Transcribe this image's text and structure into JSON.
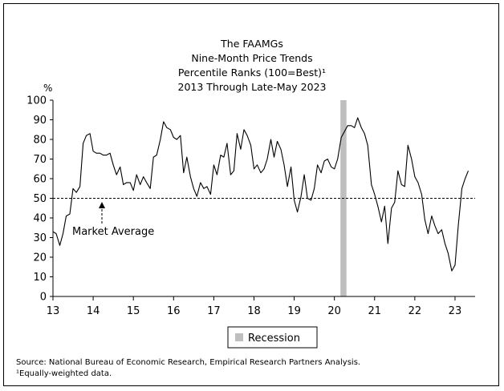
{
  "chart_data": {
    "type": "line",
    "title_lines": [
      "The FAAMGs",
      "Nine-Month Price Trends",
      "Percentile Ranks (100=Best)¹",
      "2013 Through Late-May 2023"
    ],
    "ylabel": "%",
    "ylim": [
      0,
      100
    ],
    "yticks": [
      0,
      10,
      20,
      30,
      40,
      50,
      60,
      70,
      80,
      90,
      100
    ],
    "xlim": [
      2013,
      2023.5
    ],
    "xticks": [
      {
        "value": 2013,
        "label": "13"
      },
      {
        "value": 2014,
        "label": "14"
      },
      {
        "value": 2015,
        "label": "15"
      },
      {
        "value": 2016,
        "label": "16"
      },
      {
        "value": 2017,
        "label": "17"
      },
      {
        "value": 2018,
        "label": "18"
      },
      {
        "value": 2019,
        "label": "19"
      },
      {
        "value": 2020,
        "label": "20"
      },
      {
        "value": 2021,
        "label": "21"
      },
      {
        "value": 2022,
        "label": "22"
      },
      {
        "value": 2023,
        "label": "23"
      }
    ],
    "reference_line": {
      "value": 50,
      "label": "Market Average",
      "style": "dashed"
    },
    "recession": {
      "start": 2020.15,
      "end": 2020.3,
      "label": "Recession",
      "color": "#bfbfbf"
    },
    "legend": "bottom-center",
    "grid": false,
    "line_color": "#000000",
    "series": [
      {
        "x": [
          2013.0,
          2013.08,
          2013.17,
          2013.25,
          2013.33,
          2013.42,
          2013.5,
          2013.58,
          2013.67,
          2013.75,
          2013.83,
          2013.92,
          2014.0,
          2014.08,
          2014.17,
          2014.25,
          2014.33,
          2014.42,
          2014.5,
          2014.58,
          2014.67,
          2014.75,
          2014.83,
          2014.92,
          2015.0,
          2015.08,
          2015.17,
          2015.25,
          2015.33,
          2015.42,
          2015.5,
          2015.58,
          2015.67,
          2015.75,
          2015.83,
          2015.92,
          2016.0,
          2016.08,
          2016.17,
          2016.25,
          2016.33,
          2016.42,
          2016.5,
          2016.58,
          2016.67,
          2016.75,
          2016.83,
          2016.92,
          2017.0,
          2017.08,
          2017.17,
          2017.25,
          2017.33,
          2017.42,
          2017.5,
          2017.58,
          2017.67,
          2017.75,
          2017.83,
          2017.92,
          2018.0,
          2018.08,
          2018.17,
          2018.25,
          2018.33,
          2018.42,
          2018.5,
          2018.58,
          2018.67,
          2018.75,
          2018.83,
          2018.92,
          2019.0,
          2019.08,
          2019.17,
          2019.25,
          2019.33,
          2019.42,
          2019.5,
          2019.58,
          2019.67,
          2019.75,
          2019.83,
          2019.92,
          2020.0,
          2020.08,
          2020.17,
          2020.25,
          2020.33,
          2020.42,
          2020.5,
          2020.58,
          2020.67,
          2020.75,
          2020.83,
          2020.92,
          2021.0,
          2021.08,
          2021.17,
          2021.25,
          2021.33,
          2021.42,
          2021.5,
          2021.58,
          2021.67,
          2021.75,
          2021.83,
          2021.92,
          2022.0,
          2022.08,
          2022.17,
          2022.25,
          2022.33,
          2022.42,
          2022.5,
          2022.58,
          2022.67,
          2022.75,
          2022.83,
          2022.92,
          2023.0,
          2023.08,
          2023.17,
          2023.25,
          2023.33
        ],
        "values": [
          33,
          32,
          26,
          32,
          41,
          42,
          55,
          53,
          56,
          78,
          82,
          83,
          74,
          73,
          73,
          72,
          72,
          73,
          67,
          62,
          66,
          57,
          58,
          58,
          54,
          62,
          57,
          61,
          58,
          55,
          71,
          72,
          80,
          89,
          86,
          85,
          81,
          80,
          82,
          63,
          71,
          61,
          55,
          51,
          58,
          55,
          56,
          52,
          67,
          62,
          72,
          71,
          78,
          62,
          64,
          83,
          75,
          85,
          82,
          77,
          65,
          67,
          63,
          65,
          70,
          80,
          71,
          79,
          75,
          67,
          56,
          66,
          49,
          43,
          51,
          62,
          50,
          49,
          55,
          67,
          63,
          69,
          70,
          66,
          65,
          70,
          81,
          84,
          87,
          87,
          86,
          91,
          86,
          83,
          77,
          57,
          52,
          46,
          38,
          46,
          27,
          45,
          48,
          64,
          57,
          56,
          77,
          70,
          61,
          58,
          52,
          39,
          32,
          41,
          36,
          32,
          34,
          27,
          22,
          13,
          16,
          36,
          55,
          60,
          64
        ]
      }
    ],
    "footnotes": [
      "Source: National Bureau of Economic Research, Empirical Research Partners Analysis.",
      "¹Equally-weighted data."
    ]
  }
}
